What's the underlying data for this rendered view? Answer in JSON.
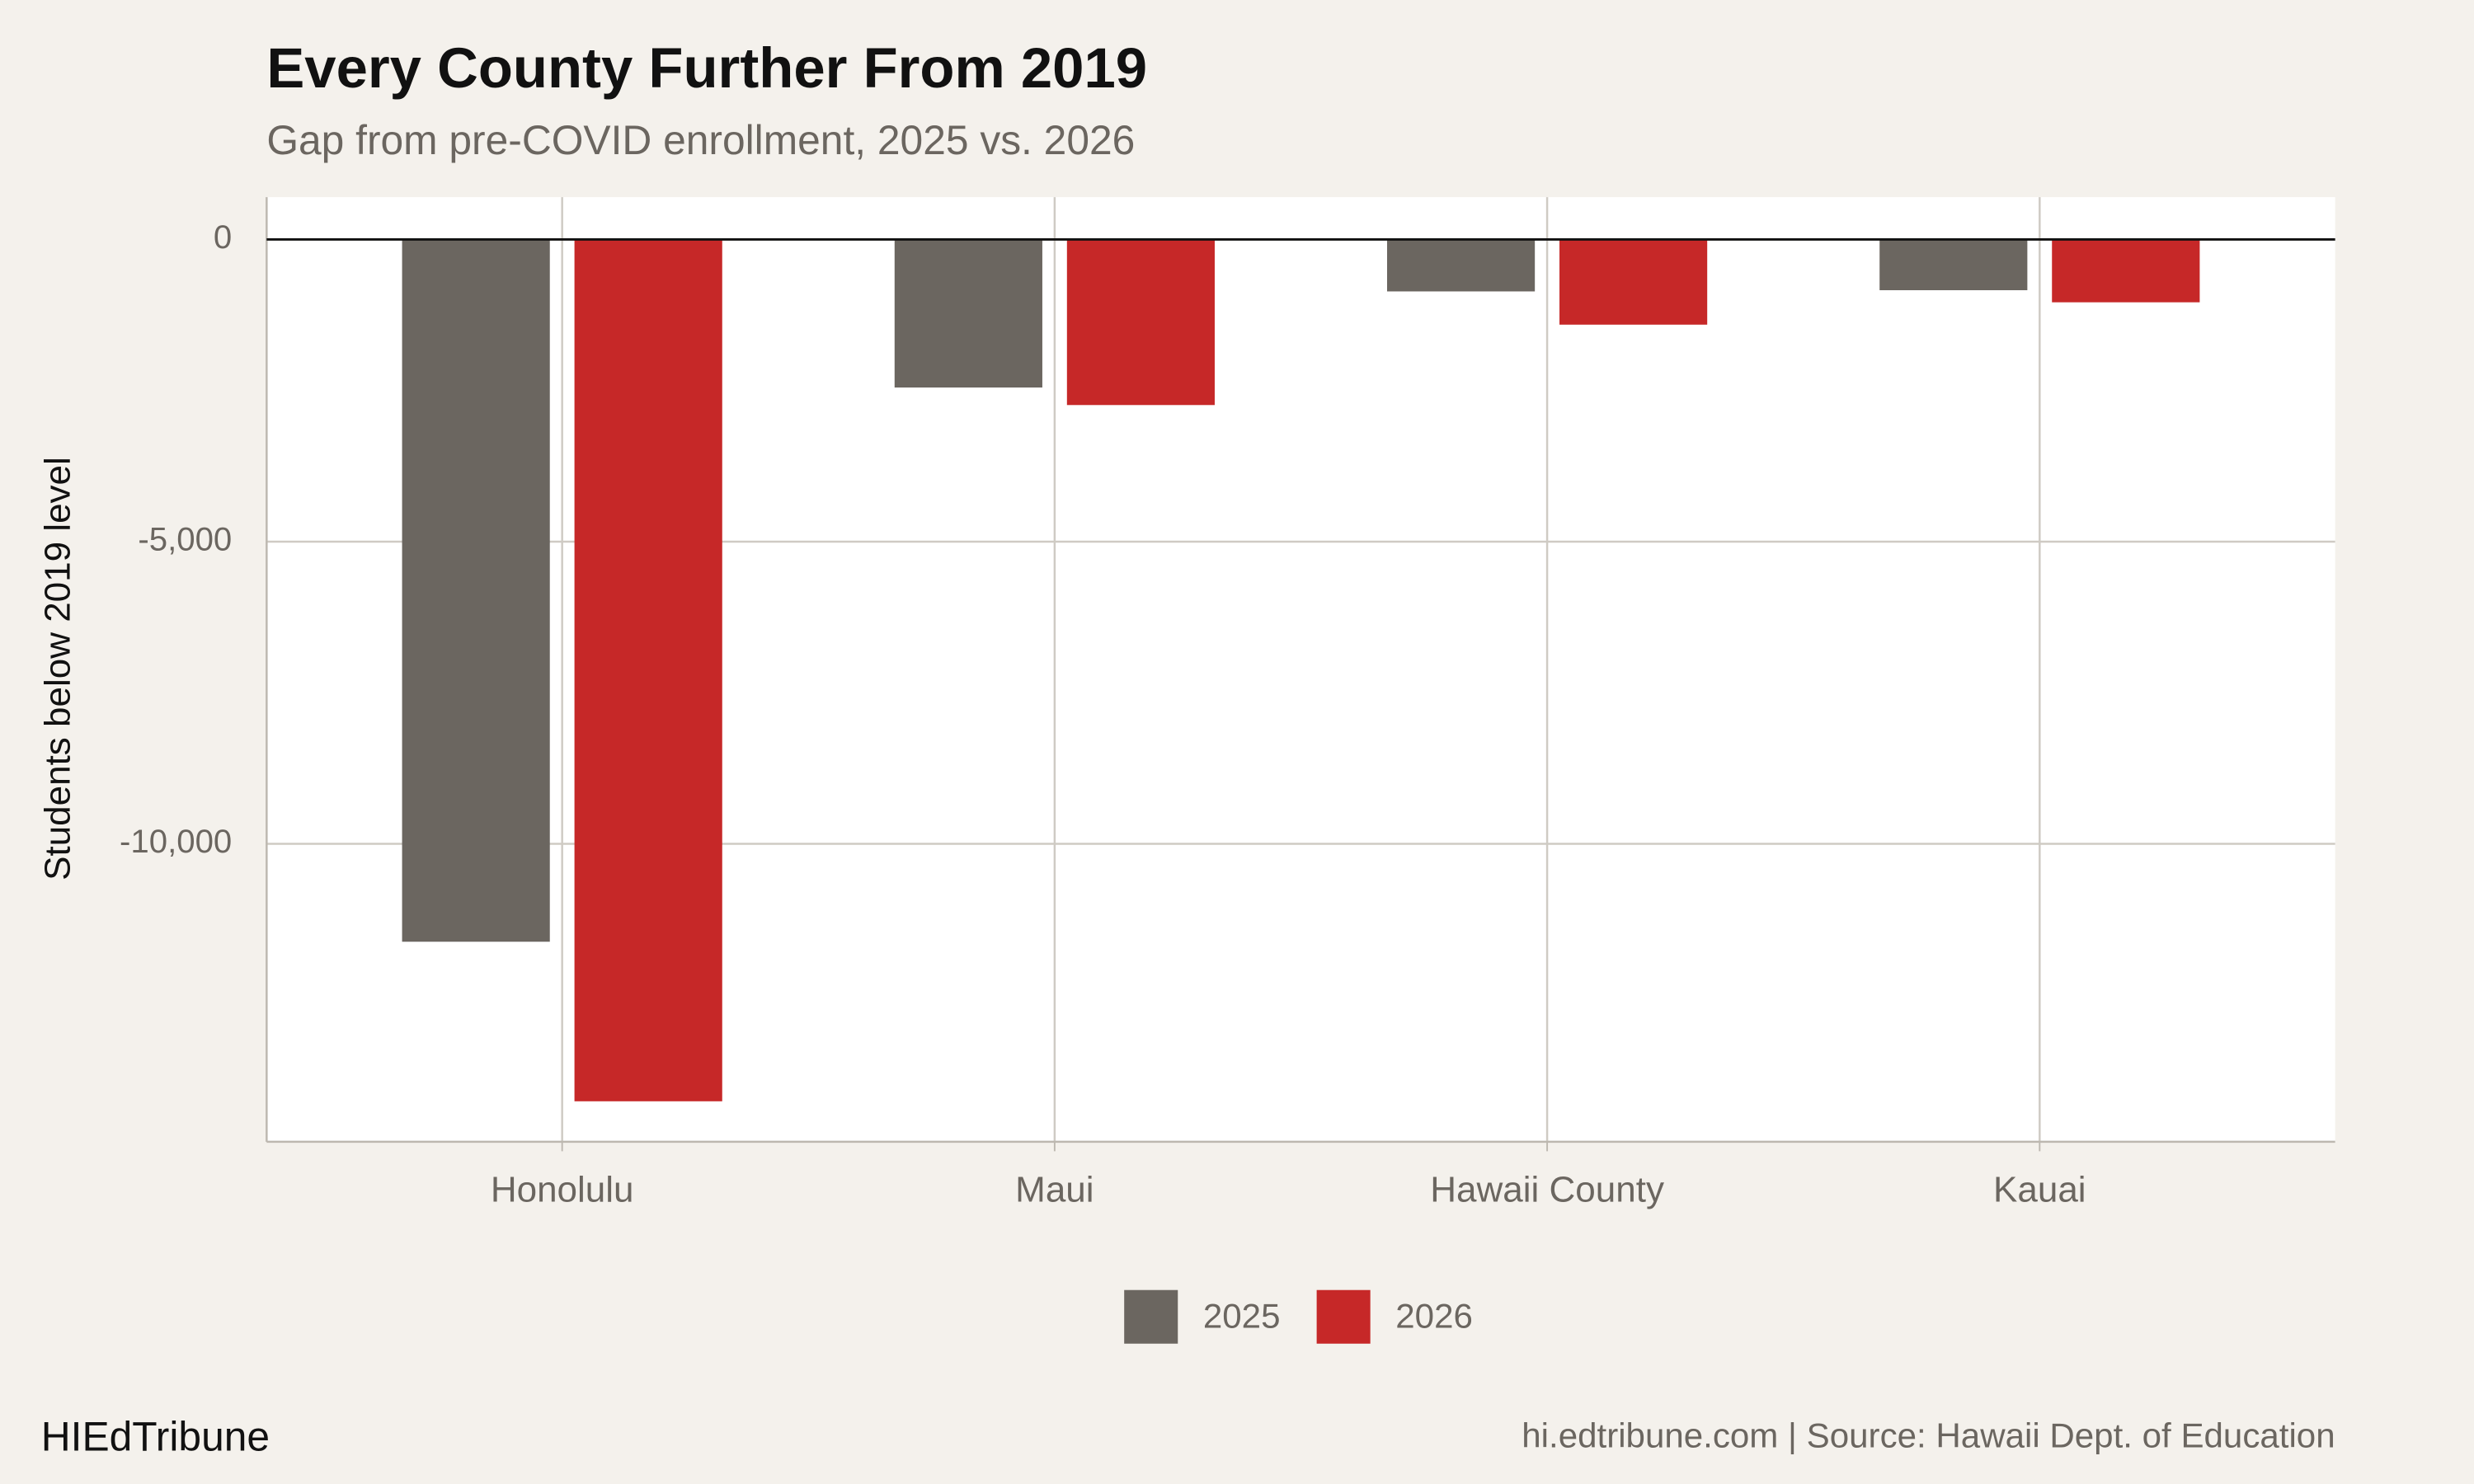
{
  "chart_data": {
    "type": "bar",
    "title": "Every County Further From 2019",
    "subtitle": "Gap from pre-COVID enrollment, 2025 vs. 2026",
    "y_label": "Students below 2019 level",
    "categories": [
      "Honolulu",
      "Maui",
      "Hawaii County",
      "Kauai"
    ],
    "series": [
      {
        "name": "2025",
        "color": "#6b6660",
        "values": [
          -11620,
          -2450,
          -860,
          -840
        ]
      },
      {
        "name": "2026",
        "color": "#c62828",
        "values": [
          -14260,
          -2740,
          -1410,
          -1040
        ]
      }
    ],
    "ylim": [
      -14930,
      700
    ],
    "yticks": [
      {
        "value": -10000,
        "label": "-10,000"
      },
      {
        "value": -5000,
        "label": "-5,000"
      },
      0
    ],
    "grid": true,
    "legend": "bottom",
    "footer_left": "HIEdTribune",
    "footer_right": "hi.edtribune.com | Source: Hawaii Dept. of Education"
  }
}
